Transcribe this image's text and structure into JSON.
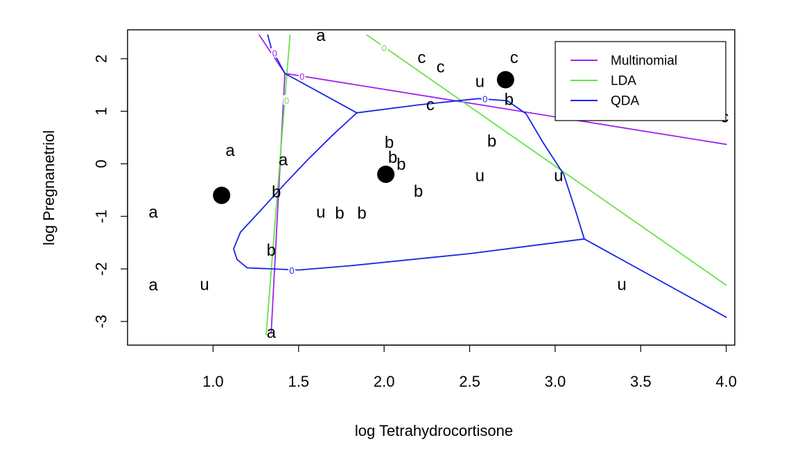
{
  "chart_data": {
    "type": "scatter",
    "title": "",
    "xlabel": "log Tetrahydrocortisone",
    "ylabel": "log Pregnanetriol",
    "xlim": [
      0.5,
      4.05
    ],
    "ylim": [
      -3.45,
      2.55
    ],
    "x_ticks": [
      1.0,
      1.5,
      2.0,
      2.5,
      3.0,
      3.5,
      4.0
    ],
    "x_tick_labels": [
      "1.0",
      "1.5",
      "2.0",
      "2.5",
      "3.0",
      "3.5",
      "4.0"
    ],
    "y_ticks": [
      -3,
      -2,
      -1,
      0,
      1,
      2
    ],
    "y_tick_labels": [
      "-3",
      "-2",
      "-1",
      "0",
      "1",
      "2"
    ],
    "grid": false,
    "legend_position": "top-right",
    "points": [
      {
        "x": 1.63,
        "y": 2.45,
        "label": "a"
      },
      {
        "x": 1.1,
        "y": 0.26,
        "label": "a"
      },
      {
        "x": 1.41,
        "y": 0.08,
        "label": "a"
      },
      {
        "x": 0.65,
        "y": -0.91,
        "label": "a"
      },
      {
        "x": 0.65,
        "y": -2.3,
        "label": "a"
      },
      {
        "x": 1.34,
        "y": -3.2,
        "label": "a"
      },
      {
        "x": 2.03,
        "y": 0.41,
        "label": "b"
      },
      {
        "x": 2.05,
        "y": 0.13,
        "label": "b"
      },
      {
        "x": 2.1,
        "y": 0.0,
        "label": "b"
      },
      {
        "x": 1.37,
        "y": -0.53,
        "label": "b"
      },
      {
        "x": 2.2,
        "y": -0.52,
        "label": "b"
      },
      {
        "x": 1.74,
        "y": -0.93,
        "label": "b"
      },
      {
        "x": 1.87,
        "y": -0.93,
        "label": "b"
      },
      {
        "x": 1.34,
        "y": -1.64,
        "label": "b"
      },
      {
        "x": 2.63,
        "y": 0.44,
        "label": "b"
      },
      {
        "x": 2.73,
        "y": 1.23,
        "label": "b"
      },
      {
        "x": 2.22,
        "y": 2.03,
        "label": "c"
      },
      {
        "x": 2.33,
        "y": 1.85,
        "label": "c"
      },
      {
        "x": 2.27,
        "y": 1.13,
        "label": "c"
      },
      {
        "x": 2.76,
        "y": 2.03,
        "label": "c"
      },
      {
        "x": 3.99,
        "y": 0.9,
        "label": "c"
      },
      {
        "x": 2.56,
        "y": 1.57,
        "label": "u"
      },
      {
        "x": 2.56,
        "y": -0.22,
        "label": "u"
      },
      {
        "x": 3.02,
        "y": -0.22,
        "label": "u"
      },
      {
        "x": 1.63,
        "y": -0.91,
        "label": "u"
      },
      {
        "x": 0.95,
        "y": -2.29,
        "label": "u"
      },
      {
        "x": 3.39,
        "y": -2.29,
        "label": "u"
      }
    ],
    "centroids": [
      {
        "x": 1.05,
        "y": -0.6
      },
      {
        "x": 2.01,
        "y": -0.2
      },
      {
        "x": 2.71,
        "y": 1.6
      }
    ],
    "series": [
      {
        "name": "Multinomial",
        "color": "#A020F0",
        "segments": [
          [
            [
              1.27,
              2.45
            ],
            [
              1.42,
              1.72
            ],
            [
              4.0,
              0.37
            ]
          ],
          [
            [
              1.42,
              1.72
            ],
            [
              1.34,
              -3.2
            ]
          ]
        ],
        "contour_labels": [
          {
            "x": 1.36,
            "y": 2.1,
            "text": "0"
          },
          {
            "x": 1.52,
            "y": 1.66,
            "text": "0"
          }
        ]
      },
      {
        "name": "LDA",
        "color": "#66E34A",
        "segments": [
          [
            [
              1.45,
              2.45
            ],
            [
              1.31,
              -3.25
            ]
          ],
          [
            [
              1.9,
              2.45
            ],
            [
              4.0,
              -2.31
            ]
          ]
        ],
        "contour_labels": [
          {
            "x": 1.43,
            "y": 1.2,
            "text": "0"
          },
          {
            "x": 2.0,
            "y": 2.2,
            "text": "0"
          }
        ]
      },
      {
        "name": "QDA",
        "color": "#1624E6",
        "segments": [
          [
            [
              1.32,
              2.45
            ],
            [
              1.34,
              2.2
            ],
            [
              1.42,
              1.72
            ],
            [
              1.84,
              0.97
            ]
          ],
          [
            [
              1.84,
              0.97
            ],
            [
              2.2,
              1.12
            ],
            [
              2.55,
              1.24
            ],
            [
              2.72,
              1.2
            ],
            [
              2.83,
              0.95
            ],
            [
              2.93,
              0.4
            ],
            [
              3.05,
              -0.2
            ],
            [
              3.12,
              -0.9
            ],
            [
              3.17,
              -1.43
            ]
          ],
          [
            [
              3.17,
              -1.43
            ],
            [
              4.0,
              -2.92
            ]
          ],
          [
            [
              3.17,
              -1.43
            ],
            [
              2.5,
              -1.71
            ],
            [
              1.8,
              -1.94
            ],
            [
              1.5,
              -2.02
            ],
            [
              1.2,
              -1.98
            ],
            [
              1.14,
              -1.82
            ],
            [
              1.12,
              -1.62
            ],
            [
              1.16,
              -1.3
            ],
            [
              1.28,
              -0.88
            ],
            [
              1.42,
              -0.38
            ],
            [
              1.56,
              0.1
            ],
            [
              1.7,
              0.55
            ],
            [
              1.84,
              0.97
            ]
          ]
        ],
        "contour_labels": [
          {
            "x": 2.59,
            "y": 1.23,
            "text": "0"
          },
          {
            "x": 1.46,
            "y": -2.03,
            "text": "0"
          }
        ]
      }
    ]
  }
}
